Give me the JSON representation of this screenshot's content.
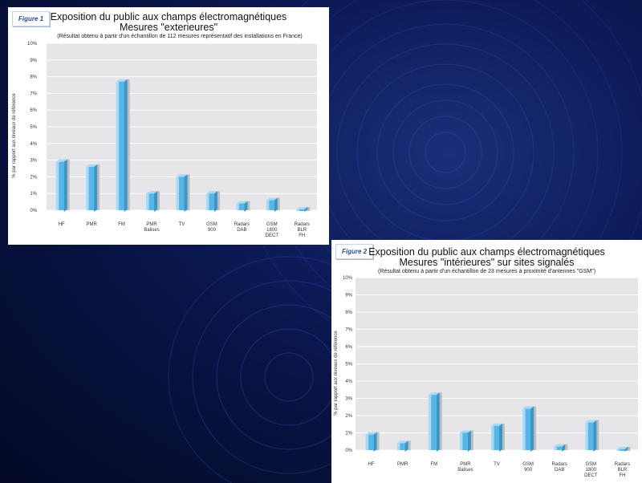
{
  "colors": {
    "plot_bg": "#e6e6e8",
    "grid": "#ffffff",
    "bar_front": "#55b6e8",
    "bar_light": "#a8daf5",
    "bar_shadow": "#bdbdbd",
    "figure_tag_text": "#2a4d9a"
  },
  "figures": [
    {
      "tag": "Figure 1",
      "title_line1": "Exposition du public aux champs électromagnétiques",
      "title_line2": "Mesures \"exterieures\"",
      "note": "(Résultat obtenu à partir d'un échantillon de 112 mesures représentatif des installations en France)"
    },
    {
      "tag": "Figure 2",
      "title_line1": "Exposition du public aux champs électromagnétiques",
      "title_line2": "Mesures \"intérieures\" sur sites signalés",
      "note": "(Résultat obtenu à partir d'un échantillon de 23 mesures à proximité d'antennes \"GSM\")"
    }
  ],
  "chart_data": [
    {
      "type": "bar",
      "title": "Exposition du public aux champs électromagnétiques",
      "subtitle": "Mesures \"exterieures\"",
      "ylabel": "% par rapport aux niveaux de référence",
      "yticks": [
        "0%",
        "1%",
        "2%",
        "3%",
        "4%",
        "5%",
        "6%",
        "7%",
        "8%",
        "9%",
        "10%"
      ],
      "ylim": [
        0,
        10
      ],
      "categories": [
        [
          "HF"
        ],
        [
          "PMR"
        ],
        [
          "FM"
        ],
        [
          "PMR",
          "Balises"
        ],
        [
          "TV"
        ],
        [
          "GSM",
          "900"
        ],
        [
          "Radars",
          "DAB"
        ],
        [
          "GSM",
          "1800",
          "DECT"
        ],
        [
          "Radars",
          "BLR",
          "FH"
        ]
      ],
      "values": [
        2.9,
        2.6,
        7.7,
        1.0,
        2.0,
        1.0,
        0.4,
        0.6,
        0.05
      ],
      "grid": true
    },
    {
      "type": "bar",
      "title": "Exposition du public aux champs électromagnétiques",
      "subtitle": "Mesures \"intérieures\" sur sites signalés",
      "ylabel": "% par rapport aux niveaux de référence",
      "yticks": [
        "0%",
        "1%",
        "2%",
        "3%",
        "4%",
        "5%",
        "6%",
        "7%",
        "8%",
        "9%",
        "10%"
      ],
      "ylim": [
        0,
        10
      ],
      "categories": [
        [
          "HF"
        ],
        [
          "PMR"
        ],
        [
          "FM"
        ],
        [
          "PMR",
          "Balises"
        ],
        [
          "TV"
        ],
        [
          "GSM",
          "900"
        ],
        [
          "Radars",
          "DAB"
        ],
        [
          "GSM",
          "1800",
          "DECT"
        ],
        [
          "Radars",
          "BLR",
          "FH"
        ]
      ],
      "values": [
        0.9,
        0.4,
        3.2,
        1.0,
        1.4,
        2.4,
        0.2,
        1.6,
        0.05
      ],
      "grid": true
    }
  ]
}
